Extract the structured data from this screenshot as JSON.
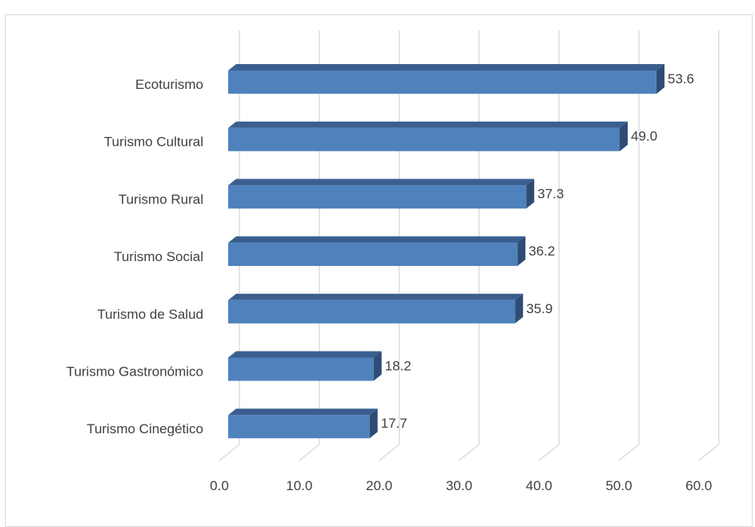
{
  "chart_data": {
    "type": "bar",
    "orientation": "horizontal",
    "style": "3d",
    "categories": [
      "Ecoturismo",
      "Turismo Cultural",
      "Turismo Rural",
      "Turismo Social",
      "Turismo de Salud",
      "Turismo Gastronómico",
      "Turismo Cinegético"
    ],
    "values": [
      53.6,
      49.0,
      37.3,
      36.2,
      35.9,
      18.2,
      17.7
    ],
    "data_labels": [
      "53.6",
      "49.0",
      "37.3",
      "36.2",
      "35.9",
      "18.2",
      "17.7"
    ],
    "xlim": [
      0,
      60
    ],
    "x_ticks": [
      "0.0",
      "10.0",
      "20.0",
      "30.0",
      "40.0",
      "50.0",
      "60.0"
    ],
    "grid": true,
    "legend": "none",
    "colors": {
      "bar_front": "#4f81bd",
      "bar_top": "#3a5f8f",
      "bar_side": "#2e4c74",
      "gridline": "#d9d9d9",
      "text": "#404040"
    }
  }
}
